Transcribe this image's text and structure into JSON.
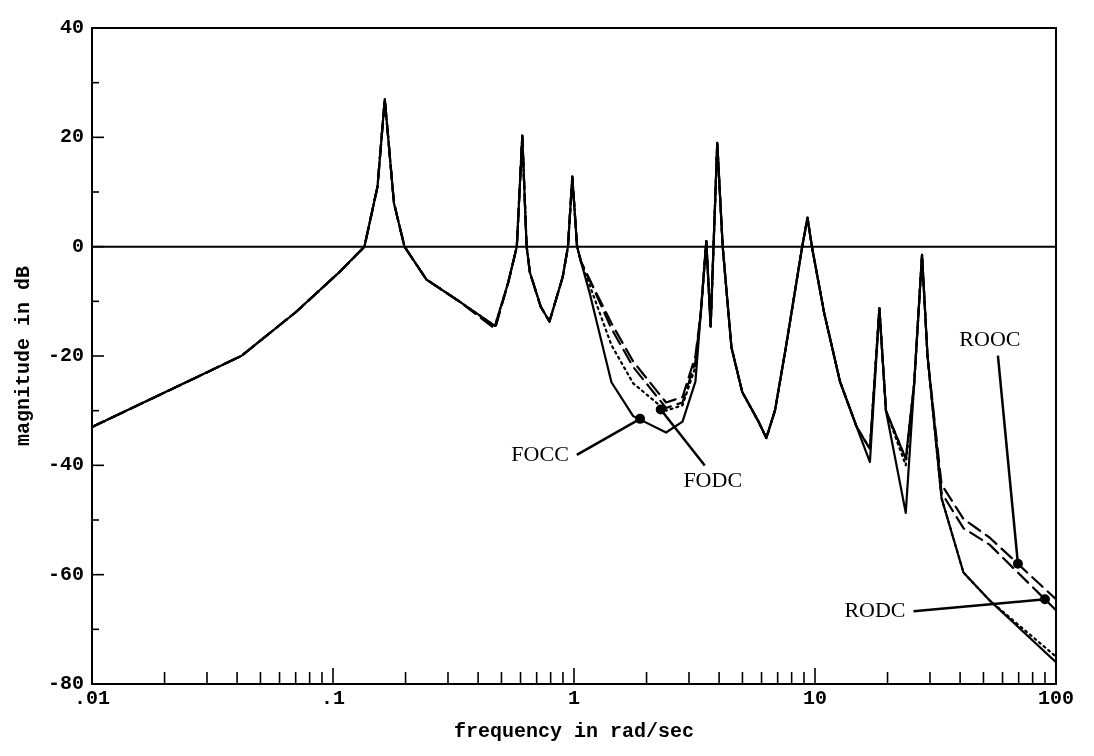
{
  "chart_data": {
    "type": "line",
    "xlabel": "frequency in rad/sec",
    "ylabel": "magnitude in dB",
    "log": "x",
    "grid": false,
    "legend": false,
    "marker": "none",
    "xlim": [
      0.01,
      100
    ],
    "ylim": [
      -80,
      40
    ],
    "xticks": [
      {
        "value": 0.01,
        "label": ".01"
      },
      {
        "value": 0.02,
        "label": null
      },
      {
        "value": 0.03,
        "label": null
      },
      {
        "value": 0.04,
        "label": null
      },
      {
        "value": 0.05,
        "label": null
      },
      {
        "value": 0.06,
        "label": null
      },
      {
        "value": 0.07,
        "label": null
      },
      {
        "value": 0.08,
        "label": null
      },
      {
        "value": 0.09,
        "label": null
      },
      {
        "value": 0.1,
        "label": ".1"
      },
      {
        "value": 0.2,
        "label": null
      },
      {
        "value": 0.3,
        "label": null
      },
      {
        "value": 0.4,
        "label": null
      },
      {
        "value": 0.5,
        "label": null
      },
      {
        "value": 0.6,
        "label": null
      },
      {
        "value": 0.7,
        "label": null
      },
      {
        "value": 0.8,
        "label": null
      },
      {
        "value": 0.9,
        "label": null
      },
      1,
      {
        "value": 2,
        "label": null
      },
      {
        "value": 3,
        "label": null
      },
      {
        "value": 4,
        "label": null
      },
      {
        "value": 5,
        "label": null
      },
      {
        "value": 6,
        "label": null
      },
      {
        "value": 7,
        "label": null
      },
      {
        "value": 8,
        "label": null
      },
      {
        "value": 9,
        "label": null
      },
      10,
      {
        "value": 20,
        "label": null
      },
      {
        "value": 30,
        "label": null
      },
      {
        "value": 40,
        "label": null
      },
      {
        "value": 50,
        "label": null
      },
      {
        "value": 60,
        "label": null
      },
      {
        "value": 70,
        "label": null
      },
      {
        "value": 80,
        "label": null
      },
      {
        "value": 90,
        "label": null
      },
      100
    ],
    "yticks": [
      -80,
      {
        "value": -70,
        "label": null
      },
      -60,
      {
        "value": -50,
        "label": null
      },
      -40,
      {
        "value": -30,
        "label": null
      },
      -20,
      {
        "value": -10,
        "label": null
      },
      0,
      {
        "value": 10,
        "label": null
      },
      20,
      {
        "value": 30,
        "label": null
      },
      40
    ],
    "x": [
      0.01,
      0.0416,
      0.07,
      0.106,
      0.135,
      0.153,
      0.164,
      0.179,
      0.198,
      0.244,
      0.334,
      0.47,
      0.533,
      0.579,
      0.61,
      0.636,
      0.656,
      0.728,
      0.791,
      0.897,
      0.944,
      0.984,
      1.03,
      1.07,
      1.16,
      1.43,
      1.76,
      2.41,
      2.82,
      3.19,
      3.36,
      3.54,
      3.69,
      3.93,
      4.14,
      4.5,
      4.99,
      5.83,
      6.28,
      6.82,
      7.57,
      8.85,
      9.31,
      9.71,
      10.9,
      12.7,
      14.9,
      16.9,
      18.5,
      19.7,
      23.8,
      25.8,
      27.8,
      29.3,
      33.5,
      41.3,
      53.0,
      100
    ],
    "series": [
      {
        "color": "#000000",
        "line_style": "solid",
        "values": [
          -33,
          -20,
          -12,
          -4.7,
          0,
          11,
          27,
          8,
          0,
          -6,
          -10,
          -14.5,
          -6.6,
          0,
          20.3,
          0,
          -4.7,
          -11,
          -13.7,
          -5.6,
          0,
          12.8,
          0,
          -2.8,
          -8.4,
          -24.8,
          -31,
          -34,
          -32,
          -24.7,
          -12,
          1,
          -14.6,
          19,
          0,
          -18.4,
          -26.6,
          -32,
          -35,
          -30,
          -18.4,
          0,
          5.3,
          0,
          -12,
          -24.7,
          -33,
          -39.4,
          -11.3,
          -30,
          -48.7,
          -25,
          -1.5,
          -20,
          -46,
          -59.6,
          -64.7,
          -76
        ]
      },
      {
        "color": "#000000",
        "line_style": "dotted",
        "values": [
          -33,
          -20,
          -12,
          -4.7,
          0,
          11,
          27,
          8,
          0,
          -6,
          -10,
          -14.5,
          -6.6,
          0,
          20.3,
          0,
          -4.7,
          -11,
          -13.7,
          -5.6,
          0,
          12.8,
          0,
          -2.8,
          -7,
          -18,
          -25,
          -30,
          -29,
          -22,
          -12,
          1,
          -14.6,
          19,
          0,
          -18.4,
          -26.6,
          -32,
          -35,
          -30,
          -18.4,
          0,
          5.3,
          0,
          -12,
          -24.7,
          -33,
          -37,
          -11.3,
          -30,
          -40,
          -25,
          -1.5,
          -20,
          -46,
          -59.6,
          -64.7,
          -75
        ]
      },
      {
        "color": "#000000",
        "line_style": "dashed",
        "values": [
          -33,
          -20,
          -12,
          -4.7,
          0,
          11,
          27,
          8,
          0,
          -6,
          -10,
          -15,
          -6.6,
          0,
          20.3,
          0,
          -4.7,
          -11,
          -13.7,
          -5.6,
          0,
          12.8,
          0,
          -2.8,
          -6,
          -14,
          -21,
          -28.5,
          -27.5,
          -20,
          -12,
          1,
          -14.6,
          19,
          0,
          -18.4,
          -26.6,
          -32,
          -35,
          -30,
          -18.4,
          0,
          5.3,
          0,
          -12,
          -24.7,
          -33,
          -37,
          -11.3,
          -30,
          -38.8,
          -25,
          -1.5,
          -20,
          -43.5,
          -49.8,
          -53.2,
          -64.5
        ]
      },
      {
        "color": "#000000",
        "line_style": "dashed",
        "values": [
          -33,
          -20,
          -12,
          -4.7,
          0,
          11,
          27,
          8,
          0,
          -6,
          -10,
          -15,
          -6.6,
          0,
          20.3,
          0,
          -4.7,
          -11,
          -13.7,
          -5.6,
          0,
          12.8,
          0,
          -2.8,
          -6,
          -15,
          -22,
          -29.5,
          -28.5,
          -21,
          -12,
          1,
          -14.6,
          19,
          0,
          -18.4,
          -26.6,
          -32,
          -35,
          -30,
          -18.4,
          0,
          5.3,
          0,
          -12,
          -24.7,
          -33,
          -37,
          -11.3,
          -30,
          -38.8,
          -25,
          -1.5,
          -20,
          -45,
          -51.5,
          -54.5,
          -66.5
        ]
      }
    ],
    "ref_lines": [
      {
        "axis": "y",
        "value": 0,
        "color": "#000000",
        "line_style": "solid"
      }
    ],
    "annotations": [
      {
        "text": "FOCC",
        "x": 1.88,
        "y": -31.5
      },
      {
        "text": "FODC",
        "x": 2.29,
        "y": -29.8
      },
      {
        "text": "ROOC",
        "x": 69.5,
        "y": -58
      },
      {
        "text": "RODC",
        "x": 90,
        "y": -64.5
      }
    ]
  }
}
